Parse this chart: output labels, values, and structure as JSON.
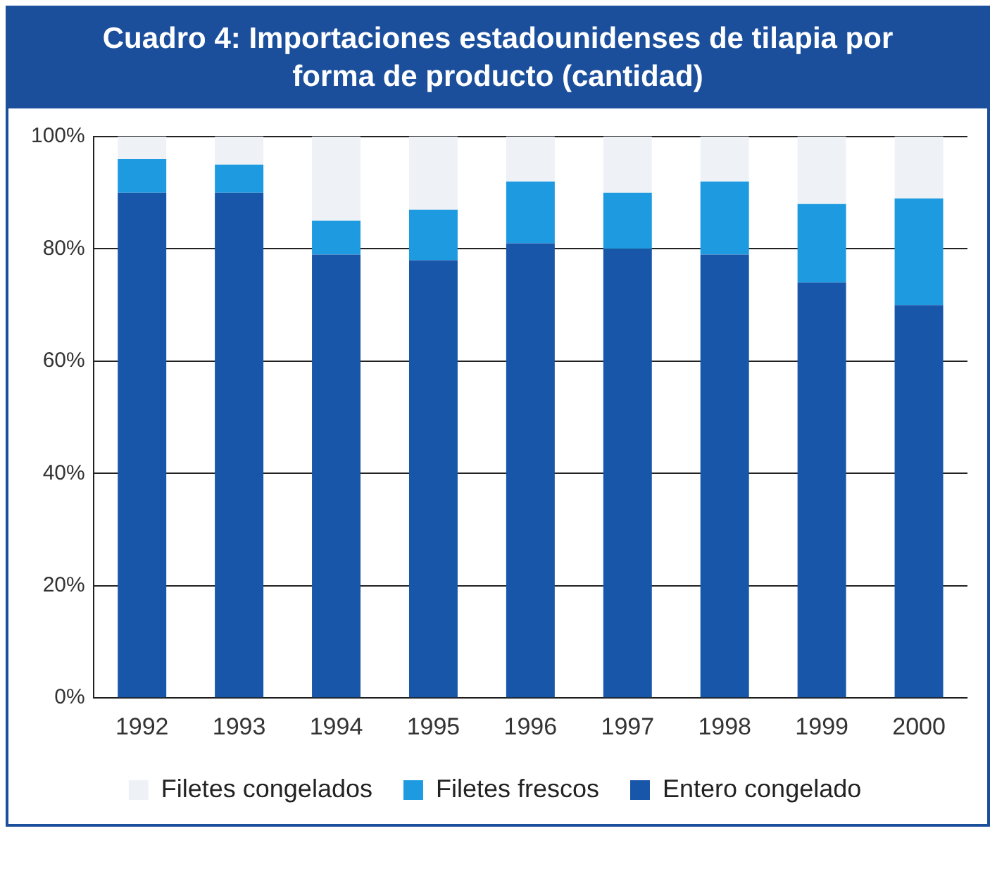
{
  "chart_data": {
    "type": "bar",
    "title": "Cuadro 4: Importaciones estadounidenses de tilapia por forma de producto (cantidad)",
    "categories": [
      "1992",
      "1993",
      "1994",
      "1995",
      "1996",
      "1997",
      "1998",
      "1999",
      "2000"
    ],
    "stacked": true,
    "series": [
      {
        "name": "Entero congelado",
        "color": "#1756a9",
        "values": [
          90,
          90,
          79,
          78,
          81,
          80,
          79,
          74,
          70
        ]
      },
      {
        "name": "Filetes frescos",
        "color": "#1e9be0",
        "values": [
          6,
          5,
          6,
          9,
          11,
          10,
          13,
          14,
          19
        ]
      },
      {
        "name": "Filetes congelados",
        "color": "#eef2f6",
        "values": [
          4,
          5,
          15,
          13,
          8,
          10,
          8,
          12,
          11
        ]
      }
    ],
    "ylim": [
      0,
      100
    ],
    "yticks": [
      {
        "value": 0,
        "label": "0%"
      },
      {
        "value": 20,
        "label": "20%"
      },
      {
        "value": 40,
        "label": "40%"
      },
      {
        "value": 60,
        "label": "60%"
      },
      {
        "value": 80,
        "label": "80%"
      },
      {
        "value": 100,
        "label": "100%"
      }
    ],
    "grid": "y",
    "legend": "bottom"
  }
}
